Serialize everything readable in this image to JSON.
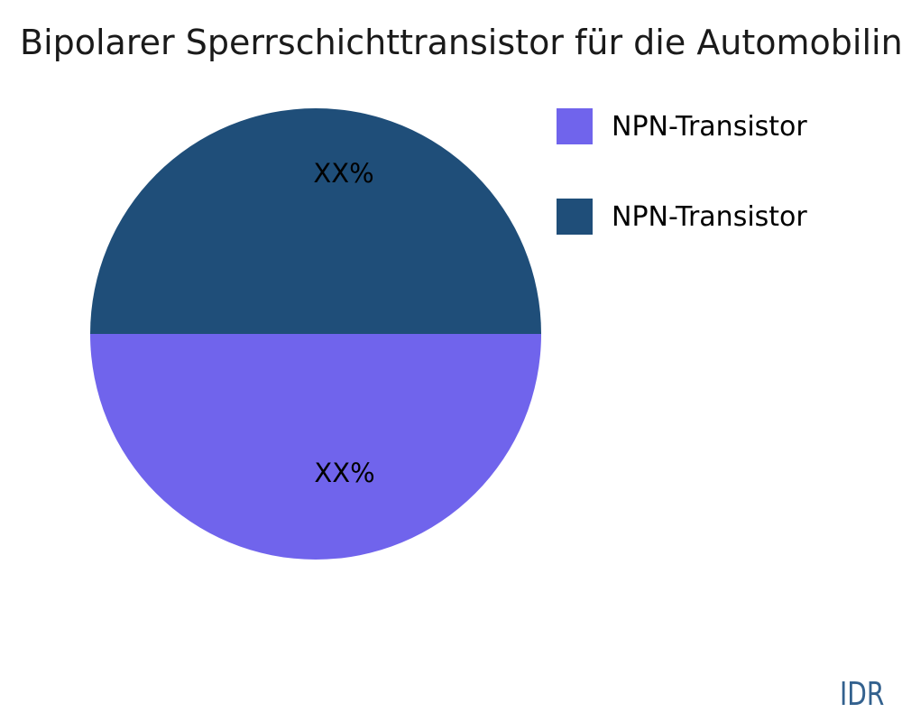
{
  "header": {
    "title": "Bipolarer Sperrschichttransistor für die Automobilindustrie"
  },
  "chart_data": {
    "type": "pie",
    "title": "Bipolarer Sperrschichttransistor für die Automobilindustrie",
    "legend_position": "right",
    "slices": [
      {
        "label": "NPN-Transistor",
        "value_pct": 50,
        "data_label": "XX%",
        "color": "#7064EC",
        "position": "bottom-half"
      },
      {
        "label": "NPN-Transistor",
        "value_pct": 50,
        "data_label": "XX%",
        "color": "#1F4E79",
        "position": "top-half"
      }
    ]
  },
  "legend": {
    "items": [
      {
        "label": "NPN-Transistor",
        "color": "#7064EC"
      },
      {
        "label": "NPN-Transistor",
        "color": "#1F4E79"
      }
    ]
  },
  "footer": {
    "currency": "IDR",
    "color": "#33618E"
  }
}
